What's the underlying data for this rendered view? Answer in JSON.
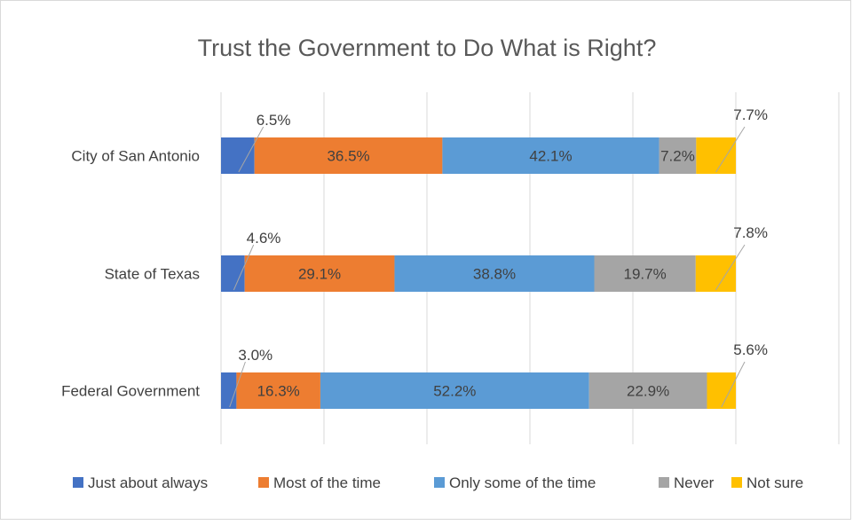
{
  "chart_data": {
    "type": "bar",
    "orientation": "horizontal",
    "stacked": true,
    "title": "Trust the Government to Do What is Right?",
    "categories": [
      "City of San Antonio",
      "State of Texas",
      "Federal Government"
    ],
    "series": [
      {
        "name": "Just about always",
        "values": [
          6.5,
          4.6,
          3.0
        ],
        "color": "#4472c4"
      },
      {
        "name": "Most of the time",
        "values": [
          36.5,
          29.1,
          16.3
        ],
        "color": "#ed7d31"
      },
      {
        "name": "Only some of the time",
        "values": [
          42.1,
          38.8,
          52.2
        ],
        "color": "#5b9bd5"
      },
      {
        "name": "Never",
        "values": [
          7.2,
          19.7,
          22.9
        ],
        "color": "#a5a5a5"
      },
      {
        "name": "Not sure",
        "values": [
          7.7,
          7.8,
          5.6
        ],
        "color": "#ffc000"
      }
    ],
    "value_labels": [
      [
        "6.5%",
        "36.5%",
        "42.1%",
        "7.2%",
        "7.7%"
      ],
      [
        "4.6%",
        "29.1%",
        "38.8%",
        "19.7%",
        "7.8%"
      ],
      [
        "3.0%",
        "16.3%",
        "52.2%",
        "22.9%",
        "5.6%"
      ]
    ],
    "xlim": [
      0,
      120
    ],
    "grid": true,
    "legend_position": "bottom"
  }
}
